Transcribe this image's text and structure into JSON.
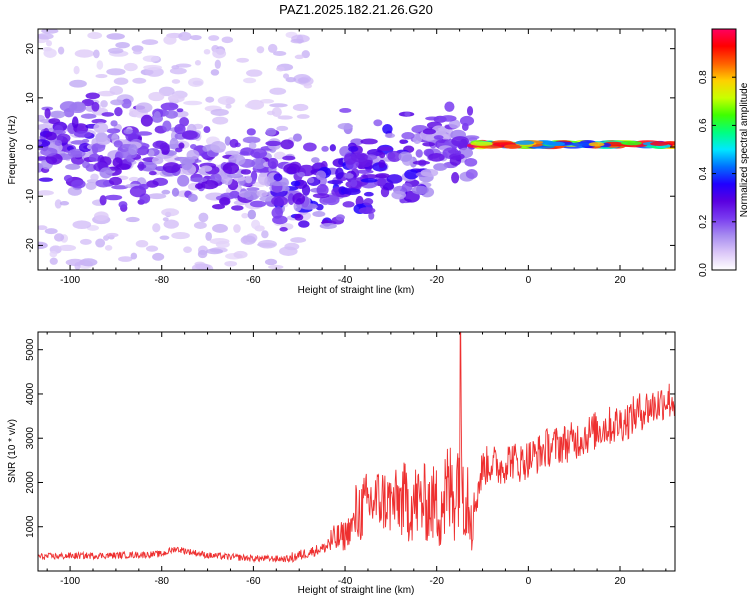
{
  "title": "PAZ1.2025.182.21.26.G20",
  "chart_data": [
    {
      "type": "heatmap",
      "xlabel": "Height of straight line (km)",
      "ylabel": "Frequency (Hz)",
      "xlim": [
        -107,
        32
      ],
      "ylim": [
        -25,
        24
      ],
      "xticks": [
        -100,
        -80,
        -60,
        -40,
        -20,
        0,
        20
      ],
      "yticks": [
        -20,
        -10,
        0,
        10,
        20
      ],
      "colorbar": {
        "label": "Normalized spectral amplitude",
        "range": [
          0,
          1
        ],
        "ticks": [
          0.0,
          0.2,
          0.4,
          0.6,
          0.8
        ],
        "colormap": [
          "#ffffff",
          "#dcc8f8",
          "#a78cf0",
          "#7a3cf0",
          "#5a00e0",
          "#2000ff",
          "#0070ff",
          "#00e8ff",
          "#00ff80",
          "#40ff00",
          "#c8ff00",
          "#ffd000",
          "#ff6000",
          "#ff0000",
          "#ff0060"
        ]
      },
      "features": [
        {
          "x": [
            -107,
            -95
          ],
          "freq": 1,
          "amp": 0.25,
          "spread": 4
        },
        {
          "x": [
            -95,
            -75
          ],
          "freq": -2,
          "amp": 0.22,
          "spread": 5
        },
        {
          "x": [
            -75,
            -55
          ],
          "freq": -5,
          "amp": 0.22,
          "spread": 4
        },
        {
          "x": [
            -55,
            -40
          ],
          "freq": -8,
          "amp": 0.28,
          "spread": 4
        },
        {
          "x": [
            -40,
            -22
          ],
          "freq": -4,
          "amp": 0.28,
          "spread": 5
        },
        {
          "x": [
            -22,
            -12
          ],
          "freq": 1,
          "amp": 0.22,
          "spread": 3
        },
        {
          "x": [
            -12,
            32
          ],
          "freq": 0.5,
          "amp": 0.75,
          "spread": 1
        }
      ]
    },
    {
      "type": "line",
      "xlabel": "Height of straight line (km)",
      "ylabel": "SNR (10 * v/v)",
      "xlim": [
        -107,
        32
      ],
      "ylim": [
        0,
        5400
      ],
      "xticks": [
        -100,
        -80,
        -60,
        -40,
        -20,
        0,
        20
      ],
      "yticks": [
        1000,
        2000,
        3000,
        4000,
        5000
      ],
      "color": "#ee3030",
      "series": [
        {
          "x": [
            -107,
            -100,
            -90,
            -80,
            -77,
            -70,
            -60,
            -52,
            -48,
            -44,
            -42,
            -40,
            -38,
            -35,
            -32,
            -30,
            -28,
            -26,
            -24,
            -22,
            -20,
            -18,
            -16,
            -15,
            -14,
            -13,
            -12,
            -10,
            -8,
            -6,
            -4,
            -2,
            0,
            2,
            4,
            6,
            8,
            10,
            12,
            14,
            16,
            18,
            20,
            22,
            24,
            26,
            28,
            30,
            32
          ],
          "y": [
            300,
            320,
            330,
            360,
            480,
            330,
            260,
            250,
            380,
            500,
            600,
            700,
            1000,
            1300,
            1400,
            1300,
            1350,
            1250,
            1300,
            1250,
            1250,
            1300,
            1500,
            2000,
            1600,
            1400,
            1200,
            2200,
            2300,
            2200,
            2400,
            2300,
            2400,
            2500,
            2650,
            2700,
            2750,
            2800,
            2900,
            3000,
            3100,
            3150,
            3200,
            3300,
            3450,
            3550,
            3600,
            3750,
            3700
          ]
        }
      ],
      "spikes": [
        {
          "x": [
            -52,
            -44
          ],
          "amp": 250
        },
        {
          "x": [
            -44,
            -38
          ],
          "amp": 700
        },
        {
          "x": [
            -38,
            -28
          ],
          "amp": 1500
        },
        {
          "x": [
            -28,
            -20
          ],
          "amp": 1800
        },
        {
          "x": [
            -20,
            -12
          ],
          "amp": 2500
        },
        {
          "x": [
            -12,
            32
          ],
          "amp": 900
        }
      ]
    }
  ]
}
